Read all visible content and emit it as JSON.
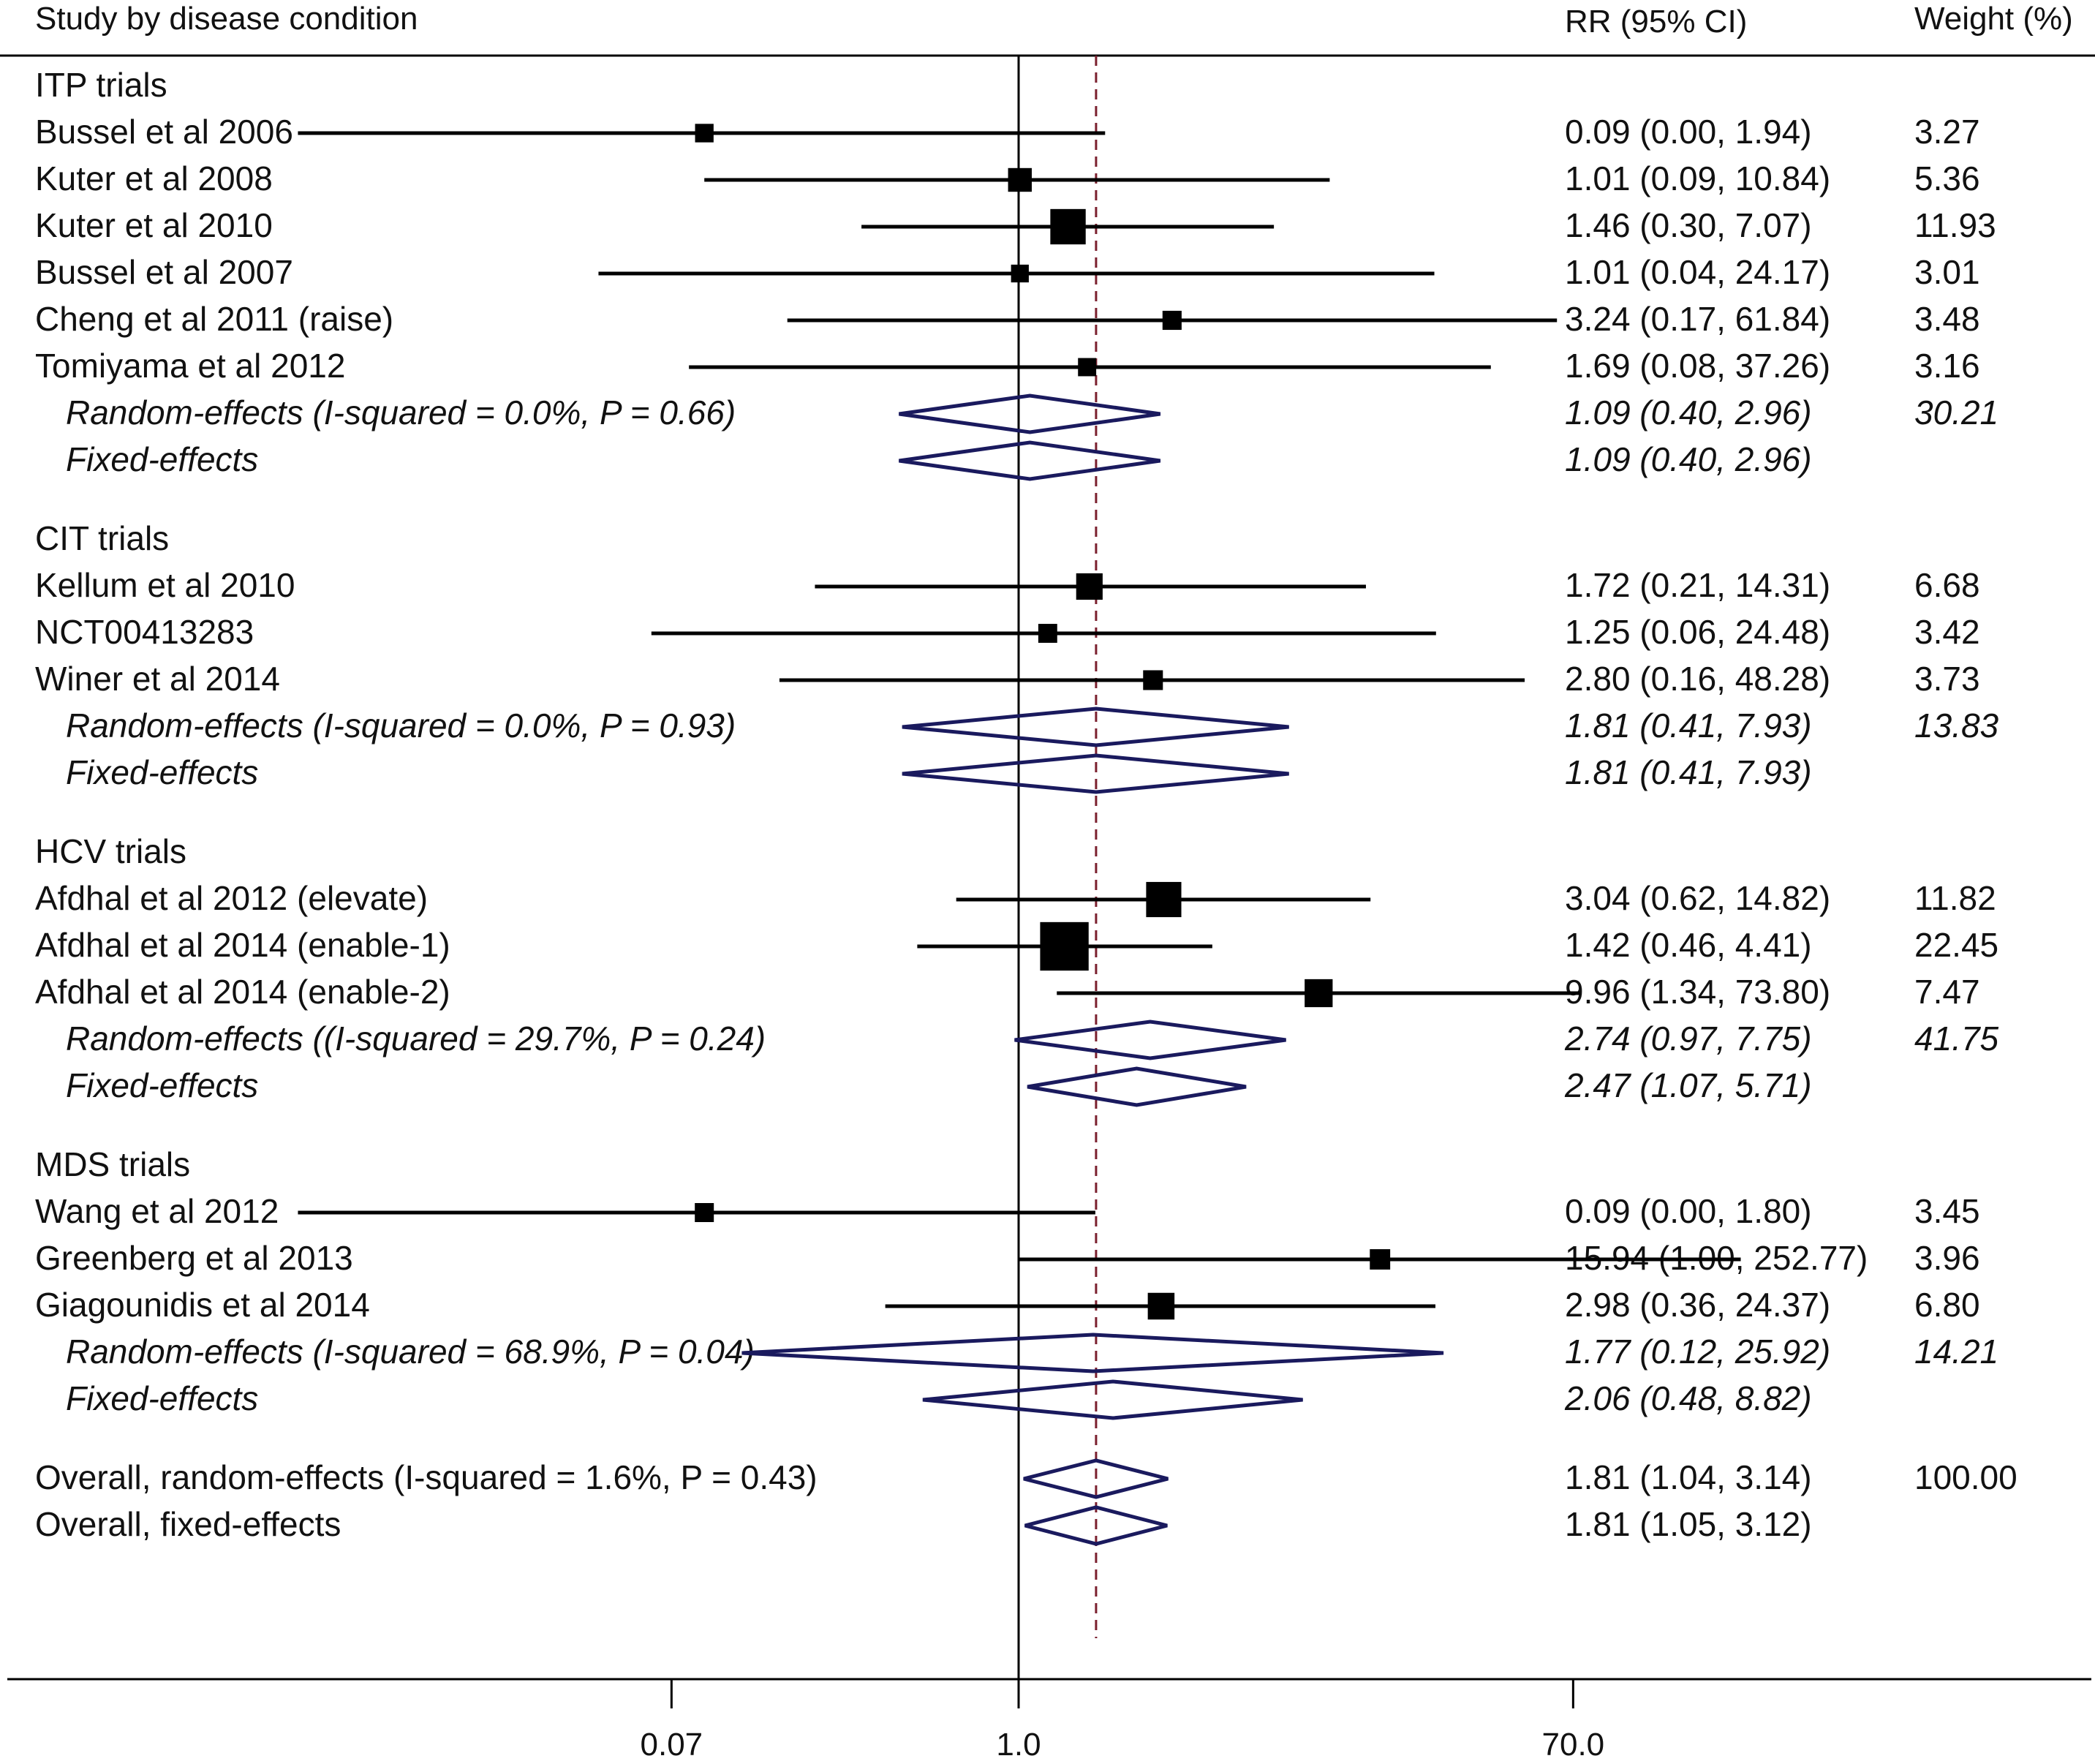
{
  "chart_data": {
    "type": "forest",
    "title": "",
    "headers": {
      "study": "Study by disease condition",
      "ci": "RR (95% CI)",
      "weight": "Weight (%)"
    },
    "x_scale": "log",
    "xlim": [
      0.0016,
      1300
    ],
    "x_ticks": [
      {
        "value": 0.07,
        "label": "0.07"
      },
      {
        "value": 1.0,
        "label": "1.0"
      },
      {
        "value": 70.0,
        "label": "70.0"
      }
    ],
    "null_line": 1.0,
    "overall_dashed_line": 1.81,
    "colors": {
      "study_marker": "#000000",
      "diamond": "#1a1a5e",
      "dashed_line": "#7a1f2e",
      "axis": "#000000"
    },
    "rows": [
      {
        "kind": "group",
        "label": "ITP trials"
      },
      {
        "kind": "study",
        "label": "Bussel et al 2006",
        "rr": 0.09,
        "lo": 0.0,
        "hi": 1.94,
        "lo_display": 0.004,
        "rr_ci": "0.09 (0.00, 1.94)",
        "weight": "3.27",
        "weight_value": 3.27
      },
      {
        "kind": "study",
        "label": "Kuter et al 2008",
        "rr": 1.01,
        "lo": 0.09,
        "hi": 10.84,
        "rr_ci": "1.01 (0.09, 10.84)",
        "weight": "5.36",
        "weight_value": 5.36
      },
      {
        "kind": "study",
        "label": "Kuter et al 2010",
        "rr": 1.46,
        "lo": 0.3,
        "hi": 7.07,
        "rr_ci": "1.46 (0.30, 7.07)",
        "weight": "11.93",
        "weight_value": 11.93
      },
      {
        "kind": "study",
        "label": "Bussel et al 2007",
        "rr": 1.01,
        "lo": 0.04,
        "hi": 24.17,
        "rr_ci": "1.01 (0.04, 24.17)",
        "weight": "3.01",
        "weight_value": 3.01
      },
      {
        "kind": "study",
        "label": "Cheng et al 2011 (raise)",
        "rr": 3.24,
        "lo": 0.17,
        "hi": 61.84,
        "rr_ci": "3.24 (0.17, 61.84)",
        "weight": "3.48",
        "weight_value": 3.48
      },
      {
        "kind": "study",
        "label": "Tomiyama et al 2012",
        "rr": 1.69,
        "lo": 0.08,
        "hi": 37.26,
        "rr_ci": "1.69 (0.08, 37.26)",
        "weight": "3.16",
        "weight_value": 3.16
      },
      {
        "kind": "pooled",
        "label": "Random-effects  (I-squared = 0.0%, P = 0.66)",
        "rr": 1.09,
        "lo": 0.4,
        "hi": 2.96,
        "rr_ci": "1.09 (0.40, 2.96)",
        "weight": "30.21"
      },
      {
        "kind": "pooled",
        "label": "Fixed-effects",
        "rr": 1.09,
        "lo": 0.4,
        "hi": 2.96,
        "rr_ci": "1.09 (0.40, 2.96)",
        "weight": ""
      },
      {
        "kind": "spacer"
      },
      {
        "kind": "group",
        "label": "CIT trials"
      },
      {
        "kind": "study",
        "label": "Kellum et al 2010",
        "rr": 1.72,
        "lo": 0.21,
        "hi": 14.31,
        "rr_ci": "1.72 (0.21, 14.31)",
        "weight": "6.68",
        "weight_value": 6.68
      },
      {
        "kind": "study",
        "label": "NCT00413283",
        "rr": 1.25,
        "lo": 0.06,
        "hi": 24.48,
        "rr_ci": "1.25 (0.06, 24.48)",
        "weight": "3.42",
        "weight_value": 3.42
      },
      {
        "kind": "study",
        "label": "Winer et al 2014",
        "rr": 2.8,
        "lo": 0.16,
        "hi": 48.28,
        "rr_ci": "2.80 (0.16, 48.28)",
        "weight": "3.73",
        "weight_value": 3.73
      },
      {
        "kind": "pooled",
        "label": "Random-effects  (I-squared = 0.0%, P = 0.93)",
        "rr": 1.81,
        "lo": 0.41,
        "hi": 7.93,
        "rr_ci": "1.81 (0.41, 7.93)",
        "weight": "13.83"
      },
      {
        "kind": "pooled",
        "label": "Fixed-effects",
        "rr": 1.81,
        "lo": 0.41,
        "hi": 7.93,
        "rr_ci": "1.81 (0.41, 7.93)",
        "weight": ""
      },
      {
        "kind": "spacer"
      },
      {
        "kind": "group",
        "label": "HCV trials"
      },
      {
        "kind": "study",
        "label": "Afdhal et al 2012 (elevate)",
        "rr": 3.04,
        "lo": 0.62,
        "hi": 14.82,
        "rr_ci": "3.04 (0.62, 14.82)",
        "weight": "11.82",
        "weight_value": 11.82
      },
      {
        "kind": "study",
        "label": "Afdhal et al 2014 (enable-1)",
        "rr": 1.42,
        "lo": 0.46,
        "hi": 4.41,
        "rr_ci": "1.42 (0.46, 4.41)",
        "weight": "22.45",
        "weight_value": 22.45
      },
      {
        "kind": "study",
        "label": "Afdhal et al 2014 (enable-2)",
        "rr": 9.96,
        "lo": 1.34,
        "hi": 73.8,
        "rr_ci": "9.96 (1.34, 73.80)",
        "weight": "7.47",
        "weight_value": 7.47
      },
      {
        "kind": "pooled",
        "label": "Random-effects ((I-squared = 29.7%, P = 0.24)",
        "rr": 2.74,
        "lo": 0.97,
        "hi": 7.75,
        "rr_ci": "2.74 (0.97, 7.75)",
        "weight": "41.75"
      },
      {
        "kind": "pooled",
        "label": "Fixed-effects",
        "rr": 2.47,
        "lo": 1.07,
        "hi": 5.71,
        "rr_ci": "2.47 (1.07, 5.71)",
        "weight": ""
      },
      {
        "kind": "spacer"
      },
      {
        "kind": "group",
        "label": "MDS trials"
      },
      {
        "kind": "study",
        "label": "Wang et al 2012",
        "rr": 0.09,
        "lo": 0.0,
        "hi": 1.8,
        "lo_display": 0.004,
        "rr_ci": "0.09 (0.00, 1.80)",
        "weight": "3.45",
        "weight_value": 3.45
      },
      {
        "kind": "study",
        "label": "Greenberg et al 2013",
        "rr": 15.94,
        "lo": 1.0,
        "hi": 252.77,
        "rr_ci": "15.94 (1.00, 252.77)",
        "weight": "3.96",
        "weight_value": 3.96
      },
      {
        "kind": "study",
        "label": "Giagounidis et al 2014",
        "rr": 2.98,
        "lo": 0.36,
        "hi": 24.37,
        "rr_ci": "2.98 (0.36, 24.37)",
        "weight": "6.80",
        "weight_value": 6.8
      },
      {
        "kind": "pooled",
        "label": "Random-effects  (I-squared = 68.9%, P = 0.04)",
        "rr": 1.77,
        "lo": 0.12,
        "hi": 25.92,
        "rr_ci": "1.77 (0.12, 25.92)",
        "weight": "14.21"
      },
      {
        "kind": "pooled",
        "label": "Fixed-effects",
        "rr": 2.06,
        "lo": 0.48,
        "hi": 8.82,
        "rr_ci": "2.06 (0.48, 8.82)",
        "weight": ""
      },
      {
        "kind": "spacer"
      },
      {
        "kind": "overall",
        "label": "Overall, random-effects (I-squared = 1.6%, P = 0.43)",
        "rr": 1.81,
        "lo": 1.04,
        "hi": 3.14,
        "rr_ci": "1.81 (1.04, 3.14)",
        "weight": "100.00"
      },
      {
        "kind": "overall",
        "label": "Overall, fixed-effects",
        "rr": 1.81,
        "lo": 1.05,
        "hi": 3.12,
        "rr_ci": "1.81 (1.05, 3.12)",
        "weight": ""
      }
    ]
  }
}
